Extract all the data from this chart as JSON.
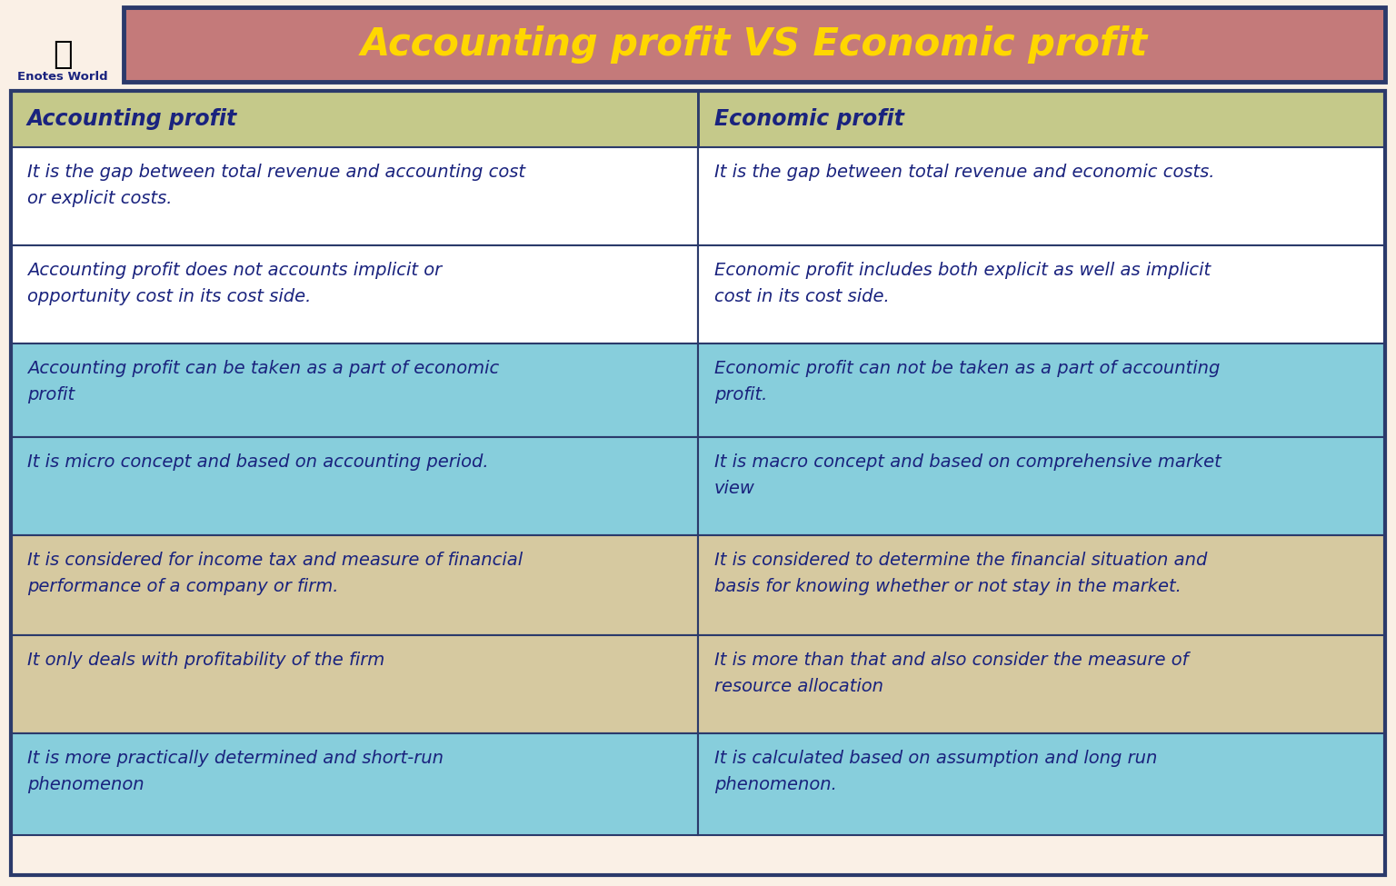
{
  "title": "Accounting profit VS Economic profit",
  "title_color": "#FFD700",
  "title_bg_color": "#C47A7A",
  "title_border_color": "#2B3A6B",
  "bg_color": "#FAF0E6",
  "header_bg_color": "#C5C98A",
  "header_text_color": "#1A237E",
  "table_border_color": "#2B3A6B",
  "col1_header": "Accounting profit",
  "col2_header": "Economic profit",
  "rows": [
    {
      "col1": "It is the gap between total revenue and accounting cost\nor explicit costs.",
      "col2": "It is the gap between total revenue and economic costs.",
      "bg": "#FFFFFF"
    },
    {
      "col1": "Accounting profit does not accounts implicit or\nopportunity cost in its cost side.",
      "col2": "Economic profit includes both explicit as well as implicit\ncost in its cost side.",
      "bg": "#FFFFFF"
    },
    {
      "col1": "Accounting profit can be taken as a part of economic\nprofit",
      "col2": "Economic profit can not be taken as a part of accounting\nprofit.",
      "bg": "#87CEDC"
    },
    {
      "col1": "It is micro concept and based on accounting period.",
      "col2": "It is macro concept and based on comprehensive market\nview",
      "bg": "#87CEDC"
    },
    {
      "col1": "It is considered for income tax and measure of financial\nperformance of a company or firm.",
      "col2": "It is considered to determine the financial situation and\nbasis for knowing whether or not stay in the market.",
      "bg": "#D6C9A0"
    },
    {
      "col1": "It only deals with profitability of the firm",
      "col2": "It is more than that and also consider the measure of\nresource allocation",
      "bg": "#D6C9A0"
    },
    {
      "col1": "It is more practically determined and short-run\nphenomenon",
      "col2": "It is calculated based on assumption and long run\nphenomenon.",
      "bg": "#87CEDC"
    }
  ],
  "logo_text": "Enotes World",
  "logo_text_color": "#1A237E",
  "cell_text_color": "#1A237E",
  "fig_width": 15.36,
  "fig_height": 9.75,
  "dpi": 100
}
